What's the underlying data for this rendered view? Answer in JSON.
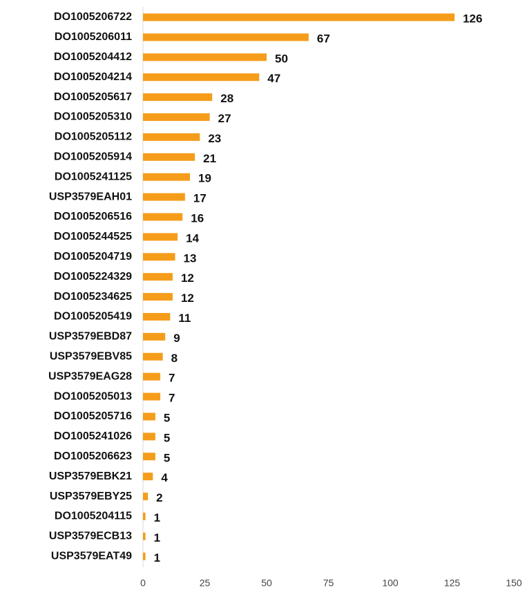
{
  "chart_data": {
    "type": "bar",
    "orientation": "horizontal",
    "categories": [
      "DO1005206722",
      "DO1005206011",
      "DO1005204412",
      "DO1005204214",
      "DO1005205617",
      "DO1005205310",
      "DO1005205112",
      "DO1005205914",
      "DO1005241125",
      "USP3579EAH01",
      "DO1005206516",
      "DO1005244525",
      "DO1005204719",
      "DO1005224329",
      "DO1005234625",
      "DO1005205419",
      "USP3579EBD87",
      "USP3579EBV85",
      "USP3579EAG28",
      "DO1005205013",
      "DO1005205716",
      "DO1005241026",
      "DO1005206623",
      "USP3579EBK21",
      "USP3579EBY25",
      "DO1005204115",
      "USP3579ECB13",
      "USP3579EAT49"
    ],
    "values": [
      126,
      67,
      50,
      47,
      28,
      27,
      23,
      21,
      19,
      17,
      16,
      14,
      13,
      12,
      12,
      11,
      9,
      8,
      7,
      7,
      5,
      5,
      5,
      4,
      2,
      1,
      1,
      1
    ],
    "color": "#f59d1a",
    "xlim": [
      0,
      150
    ],
    "xticks": [
      0,
      25,
      50,
      75,
      100,
      125,
      150
    ],
    "grid": false
  }
}
